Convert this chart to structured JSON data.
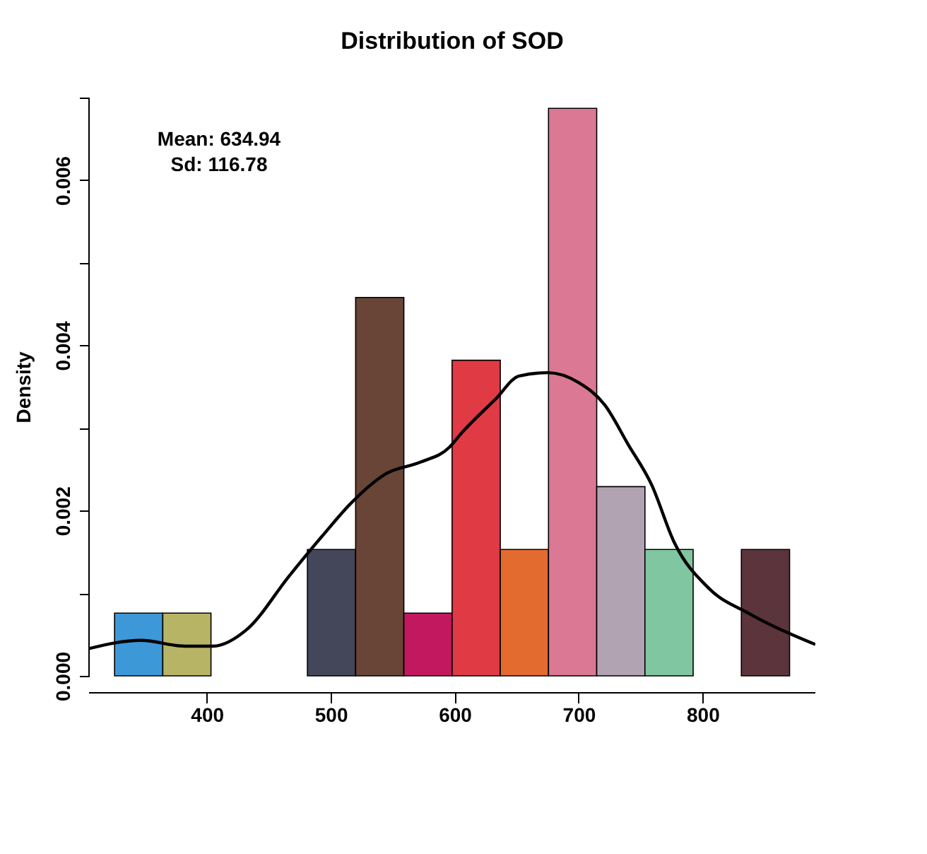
{
  "chart_data": {
    "type": "histogram",
    "title": "Distribution of SOD",
    "ylabel": "Density",
    "bins": [
      325.6,
      364.5,
      403.4,
      442.3,
      481.2,
      520.1,
      559.0,
      597.9,
      636.8,
      675.7,
      714.6,
      753.5,
      792.4,
      831.3,
      870.2
    ],
    "values": [
      0.00076,
      0.00076,
      0,
      0,
      0.00153,
      0.00458,
      0.00076,
      0.00382,
      0.00153,
      0.00687,
      0.00229,
      0.00153,
      0,
      0.00153
    ],
    "colors": [
      "#3d98d8",
      "#b8b465",
      null,
      null,
      "#44465a",
      "#684537",
      "#c2185f",
      "#e03a45",
      "#e36b30",
      "#db7893",
      "#b2a3b3",
      "#80c6a0",
      null,
      "#5c343c"
    ],
    "series": [
      {
        "type": "line",
        "color": "#000000",
        "x": [
          305,
          347,
          382,
          405,
          433,
          466,
          493,
          517,
          545,
          573,
          596,
          605,
          633,
          652,
          675,
          700,
          721,
          740,
          759,
          777,
          805,
          838,
          891
        ],
        "values": [
          0.00033,
          0.00043,
          0.00036,
          0.00036,
          0.00057,
          0.0012,
          0.00169,
          0.0021,
          0.00245,
          0.00259,
          0.00277,
          0.00293,
          0.00335,
          0.00363,
          0.00367,
          0.00355,
          0.00328,
          0.0028,
          0.00231,
          0.00162,
          0.00106,
          0.00075,
          0.00038
        ]
      }
    ],
    "xlim": [
      305,
      891
    ],
    "ylim": [
      0,
      0.007
    ],
    "xticks": [
      400,
      500,
      600,
      700,
      800
    ],
    "yticks": [
      {
        "value": 0,
        "label": "0.000"
      },
      {
        "value": 0.001,
        "label": null
      },
      0.002,
      {
        "value": 0.003,
        "label": null
      },
      0.004,
      {
        "value": 0.005,
        "label": null
      },
      0.006,
      {
        "value": 0.007,
        "label": null
      }
    ],
    "annotations": [
      "Mean: 634.94",
      "Sd: 116.78"
    ],
    "grid": false
  }
}
